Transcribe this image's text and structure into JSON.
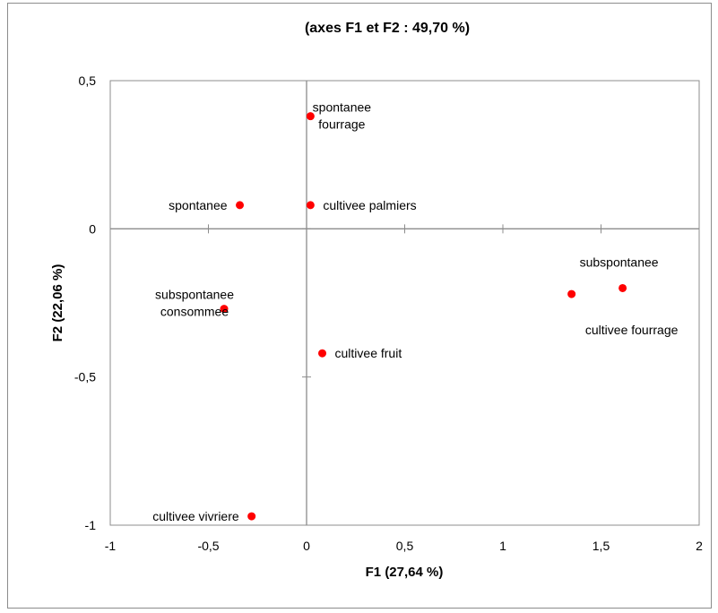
{
  "chart_data": {
    "type": "scatter",
    "title": "(axes F1 et F2 : 49,70 %)",
    "xlabel": "F1 (27,64 %)",
    "ylabel": "F2 (22,06 %)",
    "xlim": [
      -1,
      2
    ],
    "ylim": [
      -1,
      0.5
    ],
    "x_ticks": [
      {
        "value": -1,
        "label": "-1"
      },
      {
        "value": -0.5,
        "label": "-0,5"
      },
      {
        "value": 0,
        "label": "0"
      },
      {
        "value": 0.5,
        "label": "0,5"
      },
      {
        "value": 1,
        "label": "1"
      },
      {
        "value": 1.5,
        "label": "1,5"
      },
      {
        "value": 2,
        "label": "2"
      }
    ],
    "y_ticks": [
      {
        "value": 0.5,
        "label": "0,5"
      },
      {
        "value": 0,
        "label": "0"
      },
      {
        "value": -0.5,
        "label": "-0,5"
      },
      {
        "value": -1,
        "label": "-1"
      }
    ],
    "grid": false,
    "point_color": "#ff0000",
    "points": [
      {
        "x": 0.02,
        "y": 0.38,
        "label": [
          "spontanee",
          "fourrage"
        ],
        "label_pos": "right-above"
      },
      {
        "x": 0.02,
        "y": 0.08,
        "label": [
          "cultivee palmiers"
        ],
        "label_pos": "right"
      },
      {
        "x": -0.34,
        "y": 0.08,
        "label": [
          "spontanee"
        ],
        "label_pos": "left"
      },
      {
        "x": 1.35,
        "y": -0.22,
        "label": [
          "cultivee fourrage"
        ],
        "label_pos": "below-right"
      },
      {
        "x": 1.61,
        "y": -0.2,
        "label": [
          "subspontanee"
        ],
        "label_pos": "above"
      },
      {
        "x": -0.42,
        "y": -0.27,
        "label": [
          "subspontanee",
          "consommee"
        ],
        "label_pos": "left-above"
      },
      {
        "x": 0.08,
        "y": -0.42,
        "label": [
          "cultivee fruit"
        ],
        "label_pos": "right"
      },
      {
        "x": -0.28,
        "y": -0.97,
        "label": [
          "cultivee vivriere"
        ],
        "label_pos": "left"
      }
    ]
  }
}
